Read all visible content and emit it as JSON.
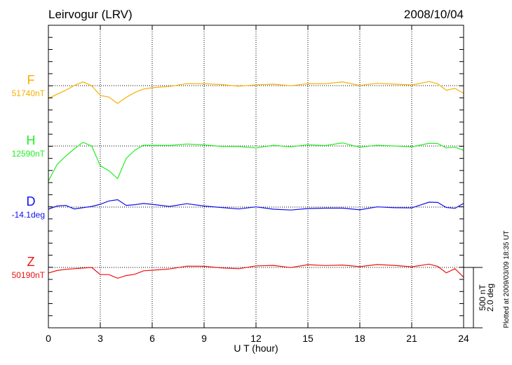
{
  "chart_data": {
    "type": "line",
    "title": "Leirvogur (LRV)",
    "date": "2008/10/04",
    "xlabel": "U T (hour)",
    "xlim": [
      0,
      24
    ],
    "xticks": [
      "0",
      "3",
      "6",
      "9",
      "12",
      "15",
      "18",
      "21",
      "24"
    ],
    "grid": "dotted vertical every 3 hours, dotted baseline per component",
    "scale_bar": {
      "nT": "500 nT",
      "deg": "2.0 deg",
      "nT_value": 500,
      "deg_value": 2.0
    },
    "plotted_note": "Plotted at 2009/03/09 18:35 UT",
    "x": [
      0,
      0.5,
      1,
      1.5,
      2,
      2.5,
      3,
      3.5,
      4,
      4.5,
      5,
      5.5,
      6,
      7,
      8,
      9,
      10,
      11,
      12,
      13,
      14,
      15,
      16,
      17,
      18,
      19,
      20,
      21,
      22,
      22.5,
      23,
      23.5,
      24
    ],
    "series": [
      {
        "name": "F",
        "baseline_label": "51740nT",
        "baseline": 51740,
        "unit": "nT",
        "color": "#f5b100",
        "values": [
          -105,
          -75,
          -35,
          12,
          23,
          0,
          -75,
          -105,
          -151,
          -93,
          -46,
          -35,
          -17,
          0,
          6,
          12,
          12,
          6,
          0,
          12,
          6,
          6,
          12,
          35,
          12,
          12,
          12,
          12,
          23,
          12,
          -35,
          -12,
          -64
        ]
      },
      {
        "name": "H",
        "baseline_label": "12590nT",
        "baseline": 12590,
        "unit": "nT",
        "color": "#22ee22",
        "values": [
          -290,
          -157,
          -81,
          -12,
          23,
          0,
          -157,
          -215,
          -273,
          -99,
          -23,
          0,
          6,
          12,
          6,
          6,
          0,
          6,
          -23,
          6,
          0,
          0,
          0,
          29,
          0,
          0,
          0,
          0,
          12,
          17,
          -12,
          0,
          -35
        ]
      },
      {
        "name": "D",
        "baseline_label": "-14.1deg",
        "baseline": -14.1,
        "unit": "deg",
        "color": "#1010ee",
        "values": [
          -0.07,
          0.02,
          0.07,
          -0.02,
          -0.05,
          0.02,
          0.12,
          0.16,
          0.23,
          0.07,
          0.12,
          0.09,
          0.09,
          0.05,
          0.07,
          0.02,
          0,
          -0.02,
          -0.02,
          -0.07,
          -0.07,
          -0.09,
          -0.05,
          -0.02,
          -0.05,
          -0.02,
          -0.02,
          0,
          0.12,
          0.14,
          0,
          0,
          0.12
        ]
      },
      {
        "name": "Z",
        "baseline_label": "50190nT",
        "baseline": 50190,
        "unit": "nT",
        "color": "#ee1111",
        "values": [
          -46,
          -29,
          -12,
          0,
          -12,
          0,
          -52,
          -70,
          -93,
          -64,
          -46,
          -35,
          -23,
          -6,
          0,
          6,
          0,
          0,
          6,
          17,
          6,
          12,
          12,
          23,
          17,
          17,
          17,
          12,
          17,
          6,
          -41,
          0,
          -81
        ]
      }
    ]
  }
}
